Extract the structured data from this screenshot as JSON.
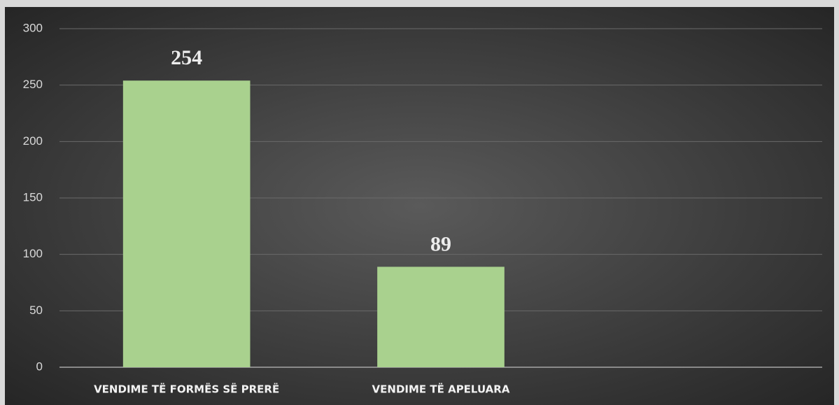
{
  "chart_data": {
    "type": "bar",
    "categories": [
      "VENDIME TË FORMËS SË PRERË",
      "VENDIME TË APELUARA",
      null
    ],
    "values": [
      254,
      89,
      null
    ],
    "color": "#a9d18e",
    "ylim": [
      0,
      300
    ],
    "yticks": [
      0,
      50,
      100,
      150,
      200,
      250,
      300
    ],
    "grid": true
  }
}
